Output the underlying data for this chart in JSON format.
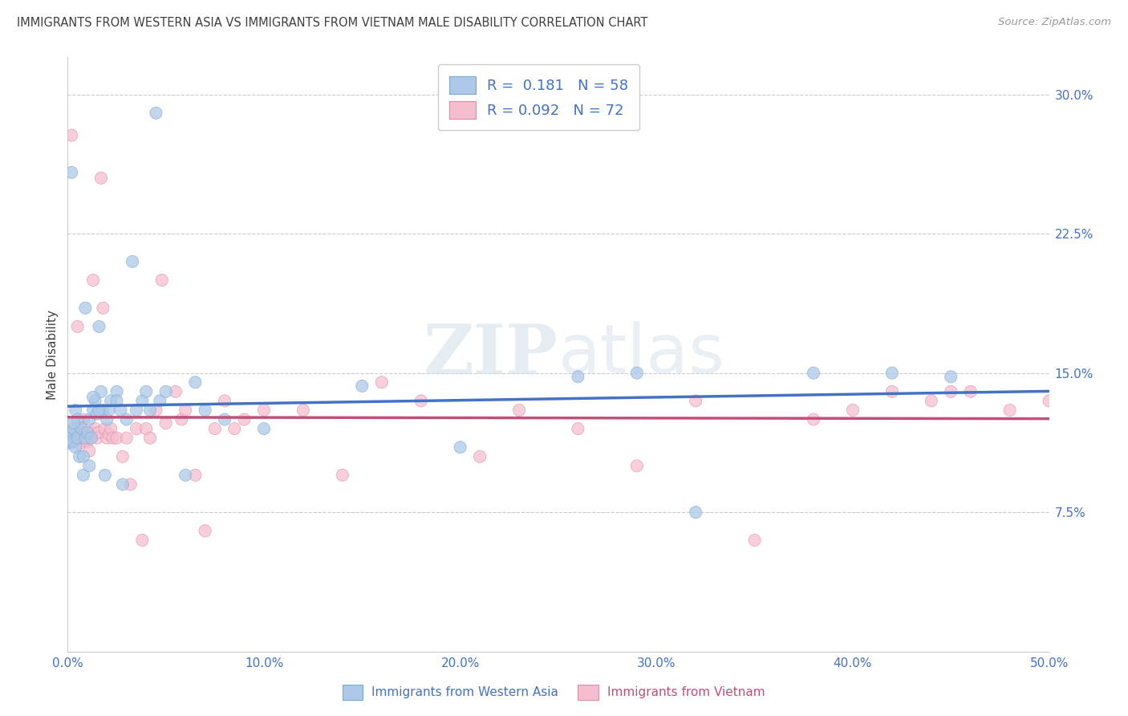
{
  "title": "IMMIGRANTS FROM WESTERN ASIA VS IMMIGRANTS FROM VIETNAM MALE DISABILITY CORRELATION CHART",
  "source": "Source: ZipAtlas.com",
  "ylabel": "Male Disability",
  "watermark": "ZIPatlas",
  "xlim": [
    0.0,
    0.5
  ],
  "ylim": [
    0.0,
    0.32
  ],
  "blue_color": "#adc8e8",
  "blue_edge": "#7aaad0",
  "blue_line": "#4472c4",
  "pink_color": "#f5bece",
  "pink_edge": "#d890a8",
  "pink_line": "#c0507a",
  "R_blue": 0.181,
  "N_blue": 58,
  "R_pink": 0.092,
  "N_pink": 72,
  "legend_label_blue": "Immigrants from Western Asia",
  "legend_label_pink": "Immigrants from Vietnam",
  "tick_color": "#4472c4",
  "grid_color": "#cccccc",
  "title_color": "#404040",
  "source_color": "#999999",
  "blue_x": [
    0.001,
    0.001,
    0.002,
    0.003,
    0.004,
    0.004,
    0.005,
    0.005,
    0.006,
    0.007,
    0.008,
    0.008,
    0.009,
    0.01,
    0.011,
    0.011,
    0.012,
    0.013,
    0.014,
    0.015,
    0.016,
    0.017,
    0.018,
    0.019,
    0.02,
    0.021,
    0.022,
    0.025,
    0.025,
    0.027,
    0.028,
    0.03,
    0.033,
    0.035,
    0.038,
    0.04,
    0.042,
    0.045,
    0.047,
    0.05,
    0.06,
    0.065,
    0.07,
    0.08,
    0.1,
    0.15,
    0.2,
    0.26,
    0.29,
    0.32,
    0.38,
    0.42,
    0.45,
    0.002,
    0.003,
    0.009,
    0.016,
    0.013
  ],
  "blue_y": [
    0.115,
    0.118,
    0.113,
    0.12,
    0.11,
    0.13,
    0.125,
    0.115,
    0.105,
    0.12,
    0.095,
    0.105,
    0.115,
    0.118,
    0.1,
    0.125,
    0.115,
    0.13,
    0.135,
    0.128,
    0.175,
    0.14,
    0.13,
    0.095,
    0.125,
    0.13,
    0.135,
    0.14,
    0.135,
    0.13,
    0.09,
    0.125,
    0.21,
    0.13,
    0.135,
    0.14,
    0.13,
    0.29,
    0.135,
    0.14,
    0.095,
    0.145,
    0.13,
    0.125,
    0.12,
    0.143,
    0.11,
    0.148,
    0.15,
    0.075,
    0.15,
    0.15,
    0.148,
    0.258,
    0.123,
    0.185,
    0.13,
    0.137
  ],
  "blue_sizes": [
    400,
    120,
    120,
    120,
    120,
    120,
    120,
    120,
    120,
    120,
    120,
    120,
    120,
    120,
    120,
    120,
    120,
    120,
    120,
    120,
    120,
    120,
    120,
    120,
    120,
    120,
    120,
    120,
    120,
    120,
    120,
    120,
    120,
    120,
    120,
    120,
    120,
    120,
    120,
    120,
    120,
    120,
    120,
    120,
    120,
    120,
    120,
    120,
    120,
    120,
    120,
    120,
    120,
    120,
    120,
    120,
    120,
    120
  ],
  "pink_x": [
    0.001,
    0.001,
    0.002,
    0.002,
    0.003,
    0.003,
    0.004,
    0.005,
    0.005,
    0.006,
    0.006,
    0.007,
    0.007,
    0.008,
    0.008,
    0.009,
    0.01,
    0.01,
    0.011,
    0.011,
    0.012,
    0.013,
    0.014,
    0.015,
    0.016,
    0.017,
    0.018,
    0.019,
    0.02,
    0.021,
    0.022,
    0.023,
    0.025,
    0.028,
    0.03,
    0.032,
    0.035,
    0.038,
    0.04,
    0.042,
    0.045,
    0.048,
    0.05,
    0.055,
    0.058,
    0.06,
    0.065,
    0.07,
    0.075,
    0.08,
    0.085,
    0.09,
    0.1,
    0.12,
    0.14,
    0.16,
    0.18,
    0.21,
    0.23,
    0.26,
    0.29,
    0.32,
    0.35,
    0.38,
    0.4,
    0.42,
    0.44,
    0.45,
    0.46,
    0.48,
    0.5,
    0.51
  ],
  "pink_y": [
    0.115,
    0.113,
    0.115,
    0.278,
    0.12,
    0.113,
    0.115,
    0.175,
    0.12,
    0.118,
    0.112,
    0.115,
    0.115,
    0.125,
    0.115,
    0.118,
    0.115,
    0.113,
    0.108,
    0.115,
    0.118,
    0.2,
    0.12,
    0.115,
    0.118,
    0.255,
    0.185,
    0.12,
    0.115,
    0.117,
    0.12,
    0.115,
    0.115,
    0.105,
    0.115,
    0.09,
    0.12,
    0.06,
    0.12,
    0.115,
    0.13,
    0.2,
    0.123,
    0.14,
    0.125,
    0.13,
    0.095,
    0.065,
    0.12,
    0.135,
    0.12,
    0.125,
    0.13,
    0.13,
    0.095,
    0.145,
    0.135,
    0.105,
    0.13,
    0.12,
    0.1,
    0.135,
    0.06,
    0.125,
    0.13,
    0.14,
    0.135,
    0.14,
    0.14,
    0.13,
    0.135,
    0.135
  ],
  "pink_sizes": [
    120,
    120,
    120,
    120,
    120,
    120,
    120,
    120,
    120,
    120,
    120,
    120,
    120,
    120,
    120,
    120,
    120,
    120,
    120,
    120,
    120,
    120,
    120,
    120,
    120,
    120,
    120,
    120,
    120,
    120,
    120,
    120,
    120,
    120,
    120,
    120,
    120,
    120,
    120,
    120,
    120,
    120,
    120,
    120,
    120,
    120,
    120,
    120,
    120,
    120,
    120,
    120,
    120,
    120,
    120,
    120,
    120,
    120,
    120,
    120,
    120,
    120,
    120,
    120,
    120,
    120,
    120,
    120,
    120,
    120,
    120,
    120
  ],
  "ytick_vals": [
    0.075,
    0.15,
    0.225,
    0.3
  ],
  "xtick_vals": [
    0.0,
    0.1,
    0.2,
    0.3,
    0.4,
    0.5
  ]
}
